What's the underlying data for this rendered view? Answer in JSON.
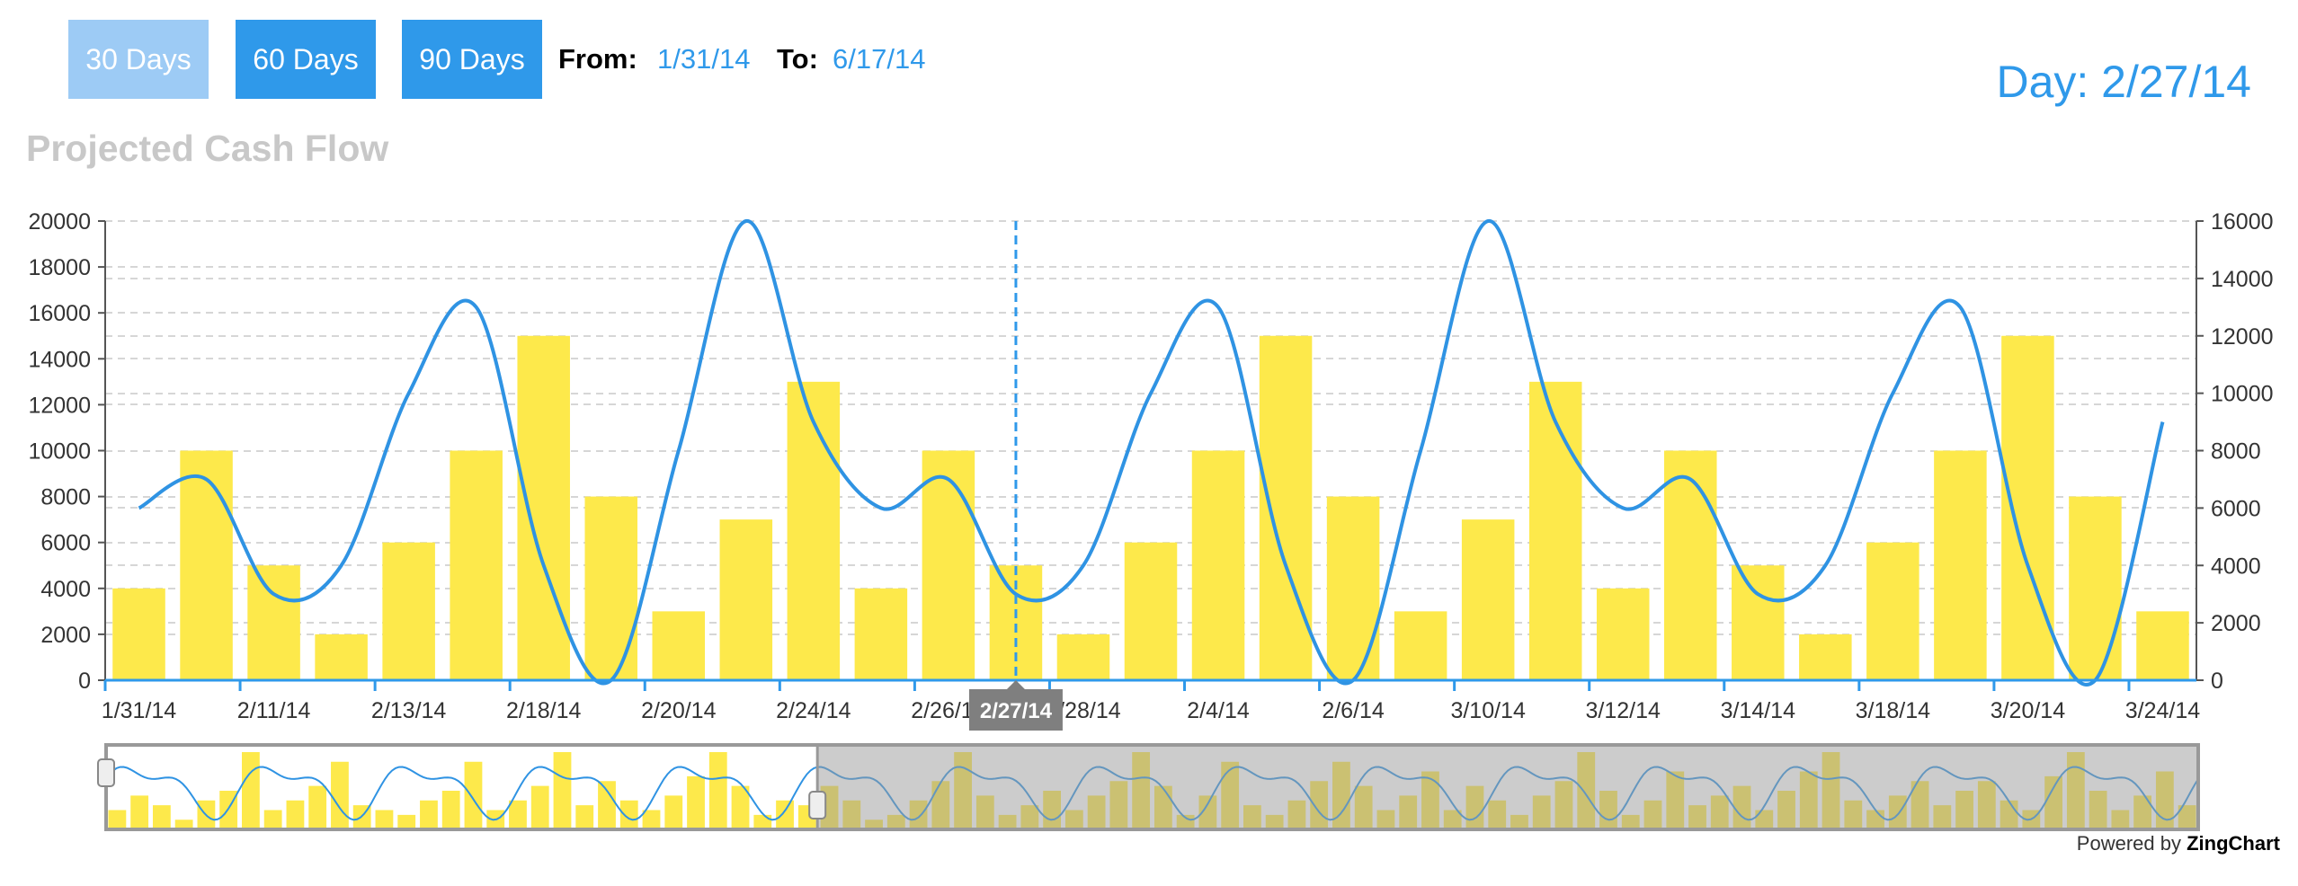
{
  "controls": {
    "buttons": [
      "30 Days",
      "60 Days",
      "90 Days"
    ],
    "from_label": "From:",
    "from_value": "1/31/14",
    "to_label": "To:",
    "to_value": "6/17/14"
  },
  "day_readout": "Day: 2/27/14",
  "footer": {
    "powered_prefix": "Powered by",
    "powered_brand": "ZingChart"
  },
  "colors": {
    "bar": "#fde94b",
    "line": "#2f93e3",
    "accent": "#2f99ea",
    "title": "#c8c8c8"
  },
  "chart_data": {
    "type": "bar",
    "title": "Projected Cash Flow",
    "series": [
      {
        "type": "bar",
        "axis": "left",
        "values": [
          4000,
          10000,
          5000,
          2000,
          6000,
          10000,
          15000,
          8000,
          3000,
          7000,
          13000,
          4000,
          10000,
          5000,
          2000,
          6000,
          10000,
          15000,
          8000,
          3000,
          7000,
          13000,
          4000,
          10000,
          5000,
          2000,
          6000,
          10000,
          15000,
          8000,
          3000
        ]
      },
      {
        "type": "line",
        "axis": "right",
        "values": [
          6000,
          7000,
          3000,
          4000,
          10000,
          13000,
          4000,
          0,
          8000,
          16000,
          9000,
          6000,
          7000,
          3000,
          4000,
          10000,
          13000,
          4000,
          0,
          8000,
          16000,
          9000,
          6000,
          7000,
          3000,
          4000,
          10000,
          13000,
          4000,
          0,
          9000
        ]
      }
    ],
    "y_left": {
      "min": 0,
      "max": 20000,
      "ticks": [
        "0",
        "2000",
        "4000",
        "6000",
        "8000",
        "10000",
        "12000",
        "14000",
        "16000",
        "18000",
        "20000"
      ]
    },
    "y_right": {
      "min": 0,
      "max": 16000,
      "ticks": [
        "0",
        "2000",
        "4000",
        "6000",
        "8000",
        "10000",
        "12000",
        "14000",
        "16000"
      ]
    },
    "x_tick_labels": [
      "1/31/14",
      "2/11/14",
      "2/13/14",
      "2/18/14",
      "2/20/14",
      "2/24/14",
      "2/26/14",
      "2/28/14",
      "2/4/14",
      "2/6/14",
      "3/10/14",
      "3/12/14",
      "3/14/14",
      "3/18/14",
      "3/20/14",
      "3/24/14"
    ],
    "x_tick_indices": [
      0,
      2,
      4,
      6,
      8,
      10,
      12,
      14,
      16,
      18,
      20,
      22,
      24,
      26,
      28,
      30
    ],
    "crosshair": {
      "index": 13,
      "label": "2/27/14"
    },
    "grid": true,
    "preview": {
      "bar_values": [
        2000,
        3500,
        2500,
        1000,
        3000,
        4000,
        8000,
        2000,
        3000,
        4500,
        7000,
        2500,
        2000,
        1500,
        3000,
        4000,
        7000,
        2000,
        3000,
        4500,
        8000,
        2500,
        5000,
        3000,
        2000,
        3500,
        5500,
        8000,
        4500,
        1500,
        3000,
        2500,
        4500,
        3000,
        1000,
        1500,
        3000,
        5000,
        8000,
        3500,
        1500,
        2500,
        4000,
        2000,
        3500,
        5000,
        8000,
        4500,
        1500,
        3500,
        7000,
        2500,
        1500,
        3000,
        5000,
        7000,
        4500,
        2000,
        3500,
        6000,
        2000,
        4500,
        3000,
        1500,
        3500,
        5000,
        8000,
        4000,
        1500,
        3000,
        6000,
        2500,
        3500,
        4500,
        2000,
        4000,
        6000,
        8000,
        3000,
        2000,
        3500,
        5000,
        2500,
        4000,
        5000,
        3000,
        2000,
        5500,
        8000,
        4000,
        2000,
        3500,
        6000,
        2500
      ],
      "line_cycles": 15,
      "selected_fraction": [
        0,
        0.34
      ]
    }
  }
}
